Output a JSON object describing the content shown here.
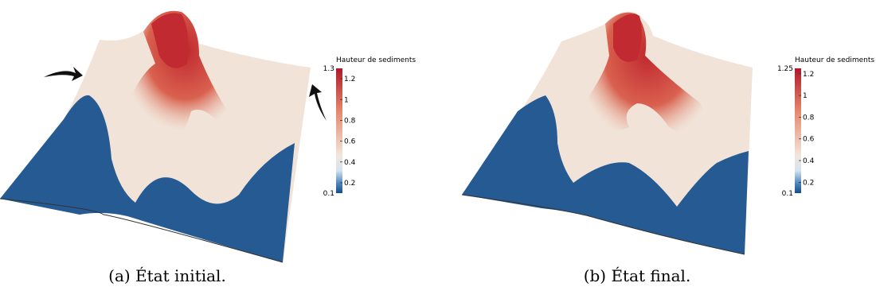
{
  "panels": [
    {
      "caption": "(a) État initial.",
      "colorbar": {
        "title": "Hauteur de sediments",
        "min": 0.1,
        "max": 1.3,
        "ticks": [
          1.2,
          1,
          0.8,
          0.6,
          0.4,
          0.2
        ]
      }
    },
    {
      "caption": "(b) État final.",
      "colorbar": {
        "title": "Hauteur de sediments",
        "min": 0.1,
        "max": 1.25,
        "ticks": [
          1.2,
          1,
          0.8,
          0.6,
          0.4,
          0.2
        ]
      }
    }
  ]
}
